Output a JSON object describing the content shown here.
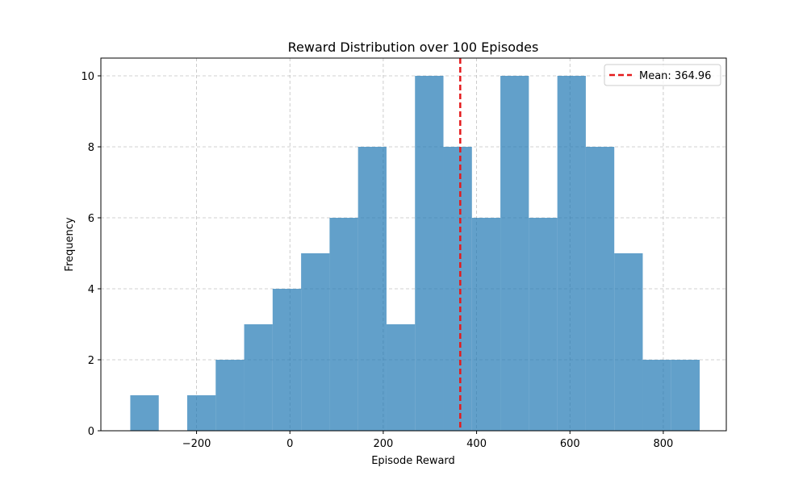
{
  "chart_data": {
    "type": "bar",
    "title": "Reward Distribution over 100 Episodes",
    "xlabel": "Episode Reward",
    "ylabel": "Frequency",
    "xlim": [
      -405,
      935
    ],
    "ylim": [
      0,
      10.5
    ],
    "xticks": [
      -200,
      0,
      200,
      400,
      600,
      800
    ],
    "yticks": [
      0,
      2,
      4,
      6,
      8,
      10
    ],
    "grid": true,
    "bar_color": "#1f77b4",
    "bins": [
      {
        "start": -342,
        "end": -281,
        "count": 1
      },
      {
        "start": -281,
        "end": -220,
        "count": 0
      },
      {
        "start": -220,
        "end": -159,
        "count": 1
      },
      {
        "start": -159,
        "end": -98,
        "count": 2
      },
      {
        "start": -98,
        "end": -37,
        "count": 3
      },
      {
        "start": -37,
        "end": 24,
        "count": 4
      },
      {
        "start": 24,
        "end": 85,
        "count": 5
      },
      {
        "start": 85,
        "end": 146,
        "count": 6
      },
      {
        "start": 146,
        "end": 207,
        "count": 8
      },
      {
        "start": 207,
        "end": 268,
        "count": 3
      },
      {
        "start": 268,
        "end": 329,
        "count": 10
      },
      {
        "start": 329,
        "end": 390,
        "count": 8
      },
      {
        "start": 390,
        "end": 451,
        "count": 6
      },
      {
        "start": 451,
        "end": 512,
        "count": 10
      },
      {
        "start": 512,
        "end": 573,
        "count": 6
      },
      {
        "start": 573,
        "end": 634,
        "count": 10
      },
      {
        "start": 634,
        "end": 695,
        "count": 8
      },
      {
        "start": 695,
        "end": 756,
        "count": 5
      },
      {
        "start": 756,
        "end": 817,
        "count": 2
      },
      {
        "start": 817,
        "end": 878,
        "count": 2
      }
    ],
    "mean": {
      "value": 364.96,
      "label": "Mean: 364.96",
      "color": "#e41a1c"
    },
    "legend_position": "top-right"
  }
}
